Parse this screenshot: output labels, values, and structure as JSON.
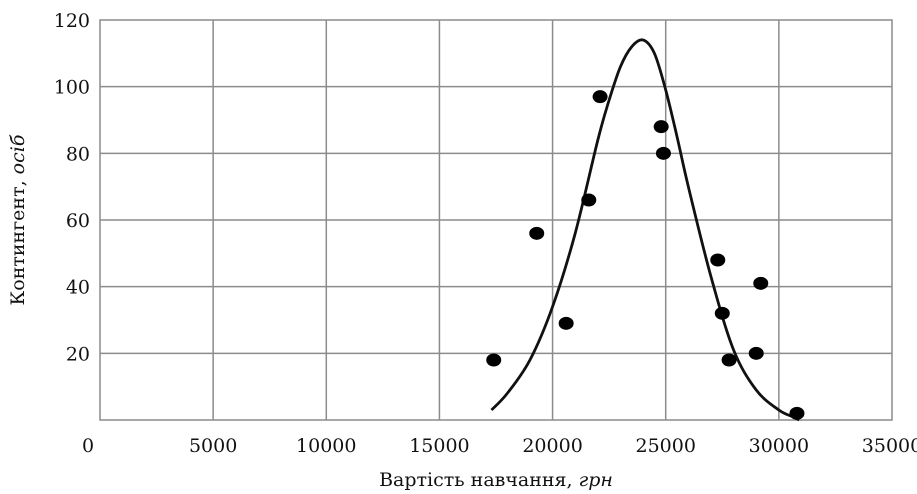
{
  "chart_data": {
    "type": "scatter",
    "xlabel": {
      "main": "Вартість навчання, ",
      "unit": "грн"
    },
    "ylabel": {
      "main": "Контингент, ",
      "unit": "осіб"
    },
    "xlim": [
      0,
      35000
    ],
    "ylim": [
      0,
      120
    ],
    "x_ticks": [
      0,
      5000,
      10000,
      15000,
      20000,
      25000,
      30000,
      35000
    ],
    "y_ticks": [
      20,
      40,
      60,
      80,
      100,
      120
    ],
    "grid": true,
    "points": [
      {
        "x": 17400,
        "y": 18
      },
      {
        "x": 19300,
        "y": 56
      },
      {
        "x": 20600,
        "y": 29
      },
      {
        "x": 21600,
        "y": 66
      },
      {
        "x": 22100,
        "y": 97
      },
      {
        "x": 24800,
        "y": 88
      },
      {
        "x": 24900,
        "y": 80
      },
      {
        "x": 27300,
        "y": 48
      },
      {
        "x": 27500,
        "y": 32
      },
      {
        "x": 27800,
        "y": 18
      },
      {
        "x": 29000,
        "y": 20
      },
      {
        "x": 29200,
        "y": 41
      },
      {
        "x": 30800,
        "y": 2
      }
    ],
    "fitted_curve": {
      "x": [
        17300,
        18000,
        19000,
        20000,
        21000,
        22000,
        22500,
        23000,
        23500,
        24000,
        24500,
        25000,
        25500,
        26000,
        27000,
        28000,
        29000,
        30000,
        30600,
        30900
      ],
      "y": [
        3,
        8,
        18,
        34,
        56,
        84,
        96,
        106,
        112,
        114,
        110,
        99,
        85,
        70,
        43,
        21,
        9,
        3,
        1,
        0
      ]
    }
  }
}
